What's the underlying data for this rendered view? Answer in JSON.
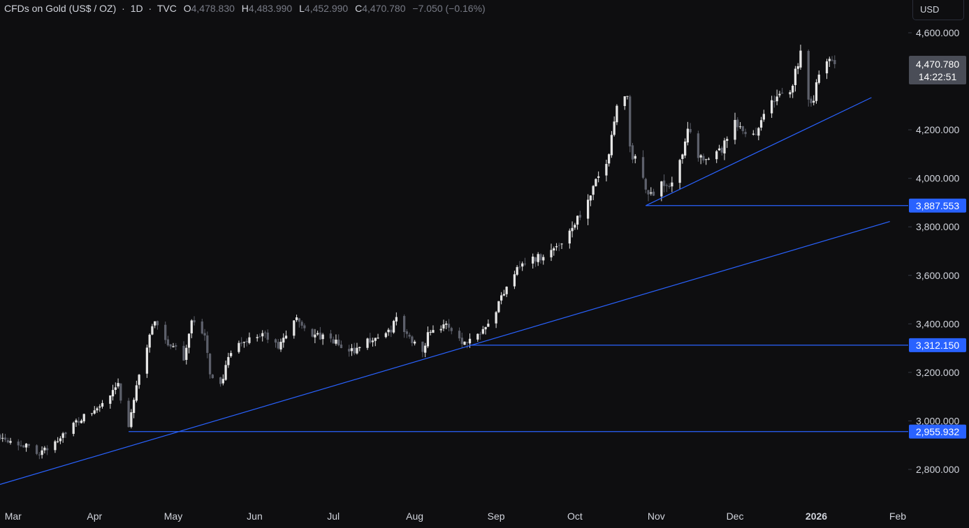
{
  "legend": {
    "symbol": "CFDs on Gold (US$ / OZ)",
    "interval": "1D",
    "source": "TVC",
    "open_label": "O",
    "open": "4,478.830",
    "high_label": "H",
    "high": "4,483.990",
    "low_label": "L",
    "low": "4,452.990",
    "close_label": "C",
    "close": "4,470.780",
    "change": "−7.050 (−0.16%)"
  },
  "currency_button": "USD",
  "last_price": {
    "value": "4,470.780",
    "countdown": "14:22:51"
  },
  "colors": {
    "background": "#0e0e10",
    "up_candle": "#e6e6e6",
    "down_candle": "#5d606b",
    "drawing_line": "#2962ff",
    "price_tag": "#2962ff",
    "last_price_tag": "#4a4d57",
    "axis_text": "#d1d4dc"
  },
  "chart_data": {
    "type": "candlestick",
    "title": "CFDs on Gold (US$ / OZ) · 1D · TVC",
    "y_axis": {
      "range": [
        2700,
        4640
      ],
      "ticks": [
        2800,
        3000,
        3200,
        3400,
        3600,
        3800,
        4000,
        4200,
        4600
      ],
      "tick_labels": [
        "2,800.000",
        "3,000.000",
        "3,200.000",
        "3,400.000",
        "3,600.000",
        "3,800.000",
        "4,000.000",
        "4,200.000",
        "4,600.000"
      ]
    },
    "x_axis": {
      "start": "2025-02-24",
      "end": "2026-02-05",
      "ticks": [
        {
          "date": "2025-03-01",
          "label": "Mar",
          "bold": false
        },
        {
          "date": "2025-04-01",
          "label": "Apr",
          "bold": false
        },
        {
          "date": "2025-05-01",
          "label": "May",
          "bold": false
        },
        {
          "date": "2025-06-01",
          "label": "Jun",
          "bold": false
        },
        {
          "date": "2025-07-01",
          "label": "Jul",
          "bold": false
        },
        {
          "date": "2025-08-01",
          "label": "Aug",
          "bold": false
        },
        {
          "date": "2025-09-01",
          "label": "Sep",
          "bold": false
        },
        {
          "date": "2025-10-01",
          "label": "Oct",
          "bold": false
        },
        {
          "date": "2025-11-01",
          "label": "Nov",
          "bold": false
        },
        {
          "date": "2025-12-01",
          "label": "Dec",
          "bold": false
        },
        {
          "date": "2026-01-01",
          "label": "2026",
          "bold": true
        },
        {
          "date": "2026-02-01",
          "label": "Feb",
          "bold": false
        }
      ]
    },
    "path_anchors": [
      [
        "2025-02-24",
        2940
      ],
      [
        "2025-03-05",
        2900
      ],
      [
        "2025-03-10",
        2870
      ],
      [
        "2025-03-14",
        2880
      ],
      [
        "2025-03-20",
        2950
      ],
      [
        "2025-03-26",
        3000
      ],
      [
        "2025-04-02",
        3050
      ],
      [
        "2025-04-07",
        3100
      ],
      [
        "2025-04-10",
        3140
      ],
      [
        "2025-04-14",
        2960
      ],
      [
        "2025-04-16",
        3100
      ],
      [
        "2025-04-19",
        3240
      ],
      [
        "2025-04-22",
        3340
      ],
      [
        "2025-04-24",
        3420
      ],
      [
        "2025-04-29",
        3320
      ],
      [
        "2025-05-05",
        3260
      ],
      [
        "2025-05-08",
        3420
      ],
      [
        "2025-05-13",
        3340
      ],
      [
        "2025-05-15",
        3200
      ],
      [
        "2025-05-19",
        3150
      ],
      [
        "2025-05-23",
        3280
      ],
      [
        "2025-05-28",
        3330
      ],
      [
        "2025-06-04",
        3360
      ],
      [
        "2025-06-10",
        3300
      ],
      [
        "2025-06-16",
        3420
      ],
      [
        "2025-06-24",
        3350
      ],
      [
        "2025-07-01",
        3330
      ],
      [
        "2025-07-07",
        3280
      ],
      [
        "2025-07-14",
        3330
      ],
      [
        "2025-07-22",
        3360
      ],
      [
        "2025-07-25",
        3420
      ],
      [
        "2025-07-30",
        3340
      ],
      [
        "2025-08-04",
        3300
      ],
      [
        "2025-08-07",
        3380
      ],
      [
        "2025-08-14",
        3390
      ],
      [
        "2025-08-20",
        3320
      ],
      [
        "2025-08-25",
        3360
      ],
      [
        "2025-09-01",
        3460
      ],
      [
        "2025-09-05",
        3560
      ],
      [
        "2025-09-09",
        3640
      ],
      [
        "2025-09-16",
        3670
      ],
      [
        "2025-09-22",
        3700
      ],
      [
        "2025-09-26",
        3740
      ],
      [
        "2025-10-01",
        3820
      ],
      [
        "2025-10-06",
        3900
      ],
      [
        "2025-10-09",
        3980
      ],
      [
        "2025-10-14",
        4100
      ],
      [
        "2025-10-17",
        4320
      ],
      [
        "2025-10-21",
        4340
      ],
      [
        "2025-10-22",
        4120
      ],
      [
        "2025-10-27",
        4000
      ],
      [
        "2025-10-29",
        3920
      ],
      [
        "2025-11-03",
        3990
      ],
      [
        "2025-11-06",
        3960
      ],
      [
        "2025-11-10",
        4060
      ],
      [
        "2025-11-13",
        4220
      ],
      [
        "2025-11-17",
        4080
      ],
      [
        "2025-11-21",
        4060
      ],
      [
        "2025-11-26",
        4120
      ],
      [
        "2025-12-01",
        4220
      ],
      [
        "2025-12-05",
        4180
      ],
      [
        "2025-12-09",
        4190
      ],
      [
        "2025-12-12",
        4280
      ],
      [
        "2025-12-17",
        4330
      ],
      [
        "2025-12-22",
        4360
      ],
      [
        "2025-12-26",
        4520
      ],
      [
        "2025-12-29",
        4340
      ],
      [
        "2025-12-31",
        4320
      ],
      [
        "2026-01-02",
        4440
      ],
      [
        "2026-01-06",
        4480
      ],
      [
        "2026-01-08",
        4471
      ]
    ],
    "drawings": {
      "trendlines": [
        {
          "from": [
            "2025-02-24",
            2738
          ],
          "to": [
            "2026-01-29",
            3822
          ]
        },
        {
          "from": [
            "2025-10-28",
            3887.553
          ],
          "to": [
            "2026-01-22",
            4333
          ]
        }
      ],
      "horizontal_levels": [
        {
          "from": "2025-04-14",
          "value": 2955.932,
          "label": "2,955.932"
        },
        {
          "from": "2025-08-22",
          "value": 3312.15,
          "label": "3,312.150"
        },
        {
          "from": "2025-10-28",
          "value": 3887.553,
          "label": "3,887.553"
        }
      ]
    },
    "last_price": 4470.78
  }
}
